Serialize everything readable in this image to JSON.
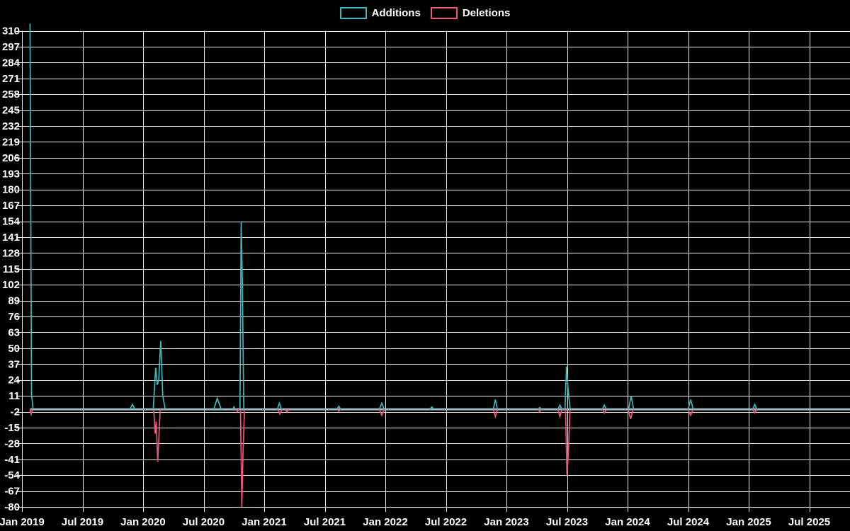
{
  "page": {
    "background": "#000000",
    "text_color": "#ffffff"
  },
  "legend": {
    "position": "top-center"
  },
  "chart_data": {
    "type": "line",
    "title": "",
    "xlabel": "",
    "ylabel": "",
    "grid": true,
    "grid_color": "#ffffff",
    "background": "#000000",
    "text_color": "#ffffff",
    "legend_position": "top-center",
    "x_axis": {
      "unit": "months_since_Jan_2019",
      "range_months": [
        0,
        82
      ],
      "tick_labels": [
        "Jan 2019",
        "Jul 2019",
        "Jan 2020",
        "Jul 2020",
        "Jan 2021",
        "Jul 2021",
        "Jan 2022",
        "Jul 2022",
        "Jan 2023",
        "Jul 2023",
        "Jan 2024",
        "Jul 2024",
        "Jan 2025",
        "Jul 2025"
      ],
      "tick_positions_months": [
        0,
        6,
        12,
        18,
        24,
        30,
        36,
        42,
        48,
        54,
        60,
        66,
        72,
        78
      ]
    },
    "y_axis": {
      "min": -80,
      "max": 310,
      "tick_step": 13,
      "ticks": [
        310,
        297,
        284,
        271,
        258,
        245,
        232,
        219,
        206,
        193,
        180,
        167,
        154,
        141,
        128,
        115,
        102,
        89,
        76,
        63,
        50,
        37,
        24,
        11,
        -2,
        -15,
        -28,
        -41,
        -54,
        -67,
        -80
      ]
    },
    "baseline": {
      "value": 0,
      "color": "#9db7bf"
    },
    "series": [
      {
        "name": "Additions",
        "color": "#3fb6bb",
        "points": [
          [
            0.8,
            316
          ],
          [
            0.95,
            12
          ],
          [
            1.1,
            0
          ],
          [
            10.7,
            0
          ],
          [
            10.95,
            4
          ],
          [
            11.2,
            0
          ],
          [
            13.0,
            0
          ],
          [
            13.25,
            34
          ],
          [
            13.4,
            20
          ],
          [
            13.55,
            24
          ],
          [
            13.75,
            56
          ],
          [
            13.95,
            11
          ],
          [
            14.2,
            0
          ],
          [
            19.0,
            0
          ],
          [
            19.35,
            9
          ],
          [
            19.75,
            0
          ],
          [
            20.9,
            0
          ],
          [
            21.0,
            2
          ],
          [
            21.1,
            0
          ],
          [
            21.6,
            0
          ],
          [
            21.72,
            154
          ],
          [
            21.84,
            103
          ],
          [
            21.97,
            0
          ],
          [
            25.3,
            0
          ],
          [
            25.5,
            5
          ],
          [
            25.7,
            0
          ],
          [
            31.2,
            0
          ],
          [
            31.4,
            2.5
          ],
          [
            31.6,
            0
          ],
          [
            35.4,
            0
          ],
          [
            35.65,
            5
          ],
          [
            35.9,
            0
          ],
          [
            40.4,
            0
          ],
          [
            40.6,
            2
          ],
          [
            40.8,
            0
          ],
          [
            46.7,
            0
          ],
          [
            46.9,
            8
          ],
          [
            47.1,
            0
          ],
          [
            51.15,
            0
          ],
          [
            51.3,
            1.5
          ],
          [
            51.45,
            0
          ],
          [
            53.1,
            0
          ],
          [
            53.3,
            3.5
          ],
          [
            53.5,
            0
          ],
          [
            53.8,
            0
          ],
          [
            53.95,
            35
          ],
          [
            54.1,
            18
          ],
          [
            54.3,
            0
          ],
          [
            57.5,
            0
          ],
          [
            57.7,
            3.5
          ],
          [
            57.9,
            0
          ],
          [
            60.1,
            0
          ],
          [
            60.35,
            11
          ],
          [
            60.6,
            0
          ],
          [
            66.0,
            0
          ],
          [
            66.25,
            8
          ],
          [
            66.5,
            0
          ],
          [
            72.4,
            0
          ],
          [
            72.6,
            4
          ],
          [
            72.8,
            0
          ],
          [
            82,
            0
          ]
        ]
      },
      {
        "name": "Deletions",
        "color": "#ee5677",
        "points": [
          [
            0.8,
            0
          ],
          [
            0.92,
            -4
          ],
          [
            1.05,
            0
          ],
          [
            13.05,
            0
          ],
          [
            13.2,
            -20
          ],
          [
            13.3,
            -10
          ],
          [
            13.45,
            -43
          ],
          [
            13.7,
            0
          ],
          [
            21.25,
            0
          ],
          [
            21.35,
            -2
          ],
          [
            21.5,
            0
          ],
          [
            21.65,
            0
          ],
          [
            21.78,
            -80
          ],
          [
            21.9,
            -35
          ],
          [
            22.05,
            0
          ],
          [
            25.35,
            0
          ],
          [
            25.55,
            -4
          ],
          [
            25.75,
            0
          ],
          [
            26.1,
            0
          ],
          [
            26.25,
            -2.5
          ],
          [
            26.4,
            0
          ],
          [
            31.2,
            0
          ],
          [
            31.4,
            -1.5
          ],
          [
            31.6,
            0
          ],
          [
            35.4,
            0
          ],
          [
            35.65,
            -5
          ],
          [
            35.9,
            0
          ],
          [
            46.7,
            0
          ],
          [
            46.9,
            -6
          ],
          [
            47.1,
            0
          ],
          [
            51.15,
            0
          ],
          [
            51.3,
            -2
          ],
          [
            51.45,
            0
          ],
          [
            53.1,
            0
          ],
          [
            53.3,
            -6
          ],
          [
            53.5,
            0
          ],
          [
            53.85,
            0
          ],
          [
            54.0,
            -55
          ],
          [
            54.15,
            -33
          ],
          [
            54.3,
            0
          ],
          [
            57.5,
            0
          ],
          [
            57.7,
            -3
          ],
          [
            57.9,
            0
          ],
          [
            60.05,
            0
          ],
          [
            60.3,
            -8
          ],
          [
            60.55,
            0
          ],
          [
            66.0,
            0
          ],
          [
            66.25,
            -5
          ],
          [
            66.5,
            0
          ],
          [
            72.4,
            0
          ],
          [
            72.6,
            -3
          ],
          [
            72.8,
            0
          ],
          [
            82,
            0
          ]
        ]
      }
    ]
  }
}
